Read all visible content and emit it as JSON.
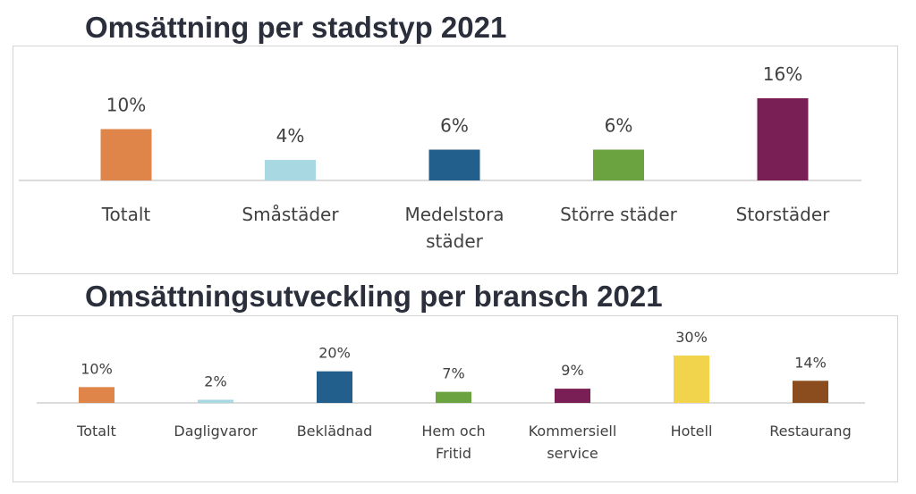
{
  "chart_data": [
    {
      "type": "bar",
      "title": "Omsättning per stadstyp 2021",
      "categories": [
        [
          "Totalt"
        ],
        [
          "Småstäder"
        ],
        [
          "Medelstora",
          "städer"
        ],
        [
          "Större städer"
        ],
        [
          "Storstäder"
        ]
      ],
      "values": [
        10,
        4,
        6,
        6,
        16
      ],
      "data_labels": [
        "10%",
        "4%",
        "6%",
        "6%",
        "16%"
      ],
      "colors": [
        "#e0854a",
        "#a8d8e2",
        "#225f8c",
        "#6aa33f",
        "#7a1f55"
      ],
      "unit": "%",
      "xlabel": "",
      "ylabel": "",
      "grid": false,
      "legend": "none"
    },
    {
      "type": "bar",
      "title": "Omsättningsutveckling per bransch 2021",
      "categories": [
        [
          "Totalt"
        ],
        [
          "Dagligvaror"
        ],
        [
          "Beklädnad"
        ],
        [
          "Hem och",
          "Fritid"
        ],
        [
          "Kommersiell",
          "service"
        ],
        [
          "Hotell"
        ],
        [
          "Restaurang"
        ]
      ],
      "values": [
        10,
        2,
        20,
        7,
        9,
        30,
        14
      ],
      "data_labels": [
        "10%",
        "2%",
        "20%",
        "7%",
        "9%",
        "30%",
        "14%"
      ],
      "colors": [
        "#e0854a",
        "#a8d8e2",
        "#225f8c",
        "#6aa33f",
        "#7a1f55",
        "#f2d34c",
        "#8b4d1e"
      ],
      "unit": "%",
      "xlabel": "",
      "ylabel": "",
      "grid": false,
      "legend": "none"
    }
  ]
}
